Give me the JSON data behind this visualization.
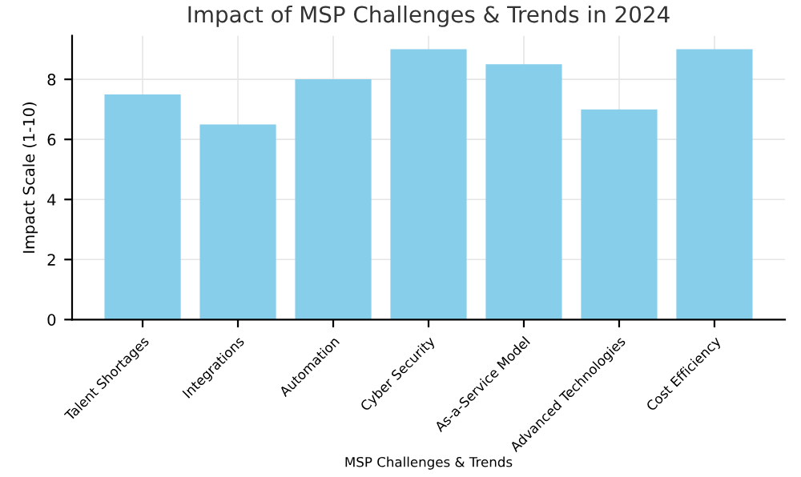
{
  "chart_data": {
    "type": "bar",
    "title": "Impact of MSP Challenges & Trends in 2024",
    "xlabel": "MSP Challenges & Trends",
    "ylabel": "Impact Scale (1-10)",
    "categories": [
      "Talent Shortages",
      "Integrations",
      "Automation",
      "Cyber Security",
      "As-a-Service Model",
      "Advanced Technologies",
      "Cost Efficiency"
    ],
    "values": [
      7.5,
      6.5,
      8,
      9,
      8.5,
      7,
      9
    ],
    "color": "#87ceeb",
    "ylim": [
      0,
      9.45
    ],
    "yticks": [
      0,
      2,
      4,
      6,
      8
    ],
    "grid": true
  }
}
